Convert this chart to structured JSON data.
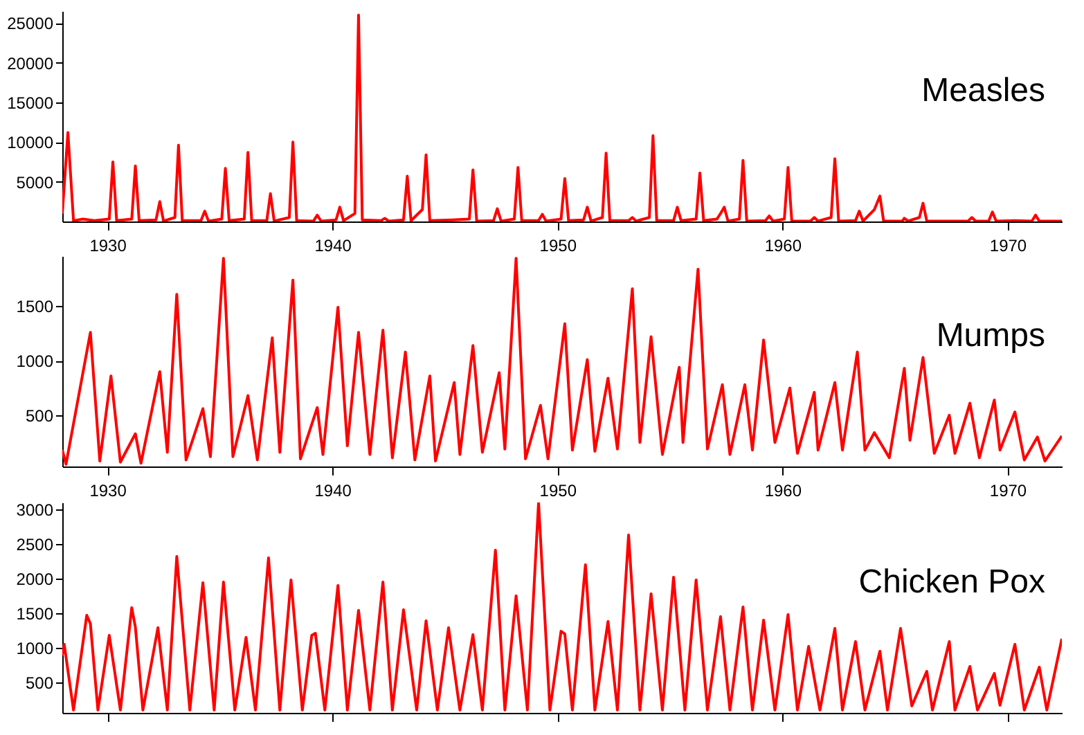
{
  "chart_data": [
    {
      "type": "line",
      "title": "Measles",
      "color": "#ff0000",
      "xlim": [
        "1928-01",
        "1972-06"
      ],
      "xticks": [
        "1930",
        "1940",
        "1950",
        "1960",
        "1970"
      ],
      "ylim": [
        0,
        26500
      ],
      "yticks": [
        5000,
        10000,
        15000,
        20000,
        25000
      ],
      "x": [
        "1928-01",
        "1928-04",
        "1928-07",
        "1928-12",
        "1929-06",
        "1930-02",
        "1930-04",
        "1930-06",
        "1931-02",
        "1931-04",
        "1931-06",
        "1932-03",
        "1932-05",
        "1932-07",
        "1933-01",
        "1933-03",
        "1933-05",
        "1934-03",
        "1934-05",
        "1934-07",
        "1935-02",
        "1935-04",
        "1935-06",
        "1936-02",
        "1936-04",
        "1936-06",
        "1937-02",
        "1937-04",
        "1937-06",
        "1938-02",
        "1938-04",
        "1938-06",
        "1939-03",
        "1939-05",
        "1939-07",
        "1940-03",
        "1940-05",
        "1940-07",
        "1941-01",
        "1941-03",
        "1941-05",
        "1942-03",
        "1942-05",
        "1942-07",
        "1943-03",
        "1943-05",
        "1943-07",
        "1944-01",
        "1944-03",
        "1944-05",
        "1945-05",
        "1946-02",
        "1946-04",
        "1946-06",
        "1947-03",
        "1947-05",
        "1947-07",
        "1948-02",
        "1948-04",
        "1948-06",
        "1949-03",
        "1949-05",
        "1949-07",
        "1950-03",
        "1950-05",
        "1950-07",
        "1951-03",
        "1951-05",
        "1951-07",
        "1952-01",
        "1952-03",
        "1952-05",
        "1953-03",
        "1953-05",
        "1953-07",
        "1954-02",
        "1954-04",
        "1954-06",
        "1955-03",
        "1955-05",
        "1955-07",
        "1956-03",
        "1956-05",
        "1956-07",
        "1957-02",
        "1957-04",
        "1957-06",
        "1957-08",
        "1958-02",
        "1958-04",
        "1958-06",
        "1959-04",
        "1959-06",
        "1959-08",
        "1960-02",
        "1960-04",
        "1960-06",
        "1961-04",
        "1961-06",
        "1961-08",
        "1962-03",
        "1962-05",
        "1962-07",
        "1963-04",
        "1963-06",
        "1963-08",
        "1964-02",
        "1964-05",
        "1964-07",
        "1965-05",
        "1965-06",
        "1965-08",
        "1966-02",
        "1966-04",
        "1966-06",
        "1968-04",
        "1968-06",
        "1968-08",
        "1969-03",
        "1969-05",
        "1969-07",
        "1970-05",
        "1971-02",
        "1971-04",
        "1971-06",
        "1972-06"
      ],
      "values": [
        1000,
        11200,
        100,
        300,
        100,
        300,
        7500,
        100,
        300,
        7000,
        100,
        200,
        2500,
        50,
        500,
        9600,
        100,
        100,
        1300,
        50,
        300,
        6700,
        100,
        300,
        8700,
        100,
        100,
        3500,
        50,
        500,
        10000,
        100,
        50,
        800,
        50,
        200,
        1800,
        100,
        1000,
        26000,
        200,
        100,
        400,
        50,
        200,
        5700,
        100,
        1500,
        8400,
        100,
        200,
        300,
        6500,
        50,
        100,
        1600,
        50,
        300,
        6800,
        100,
        100,
        900,
        50,
        300,
        5400,
        100,
        200,
        1800,
        50,
        500,
        8600,
        100,
        100,
        500,
        50,
        500,
        10800,
        100,
        100,
        1800,
        100,
        300,
        6100,
        100,
        300,
        1000,
        1800,
        50,
        300,
        7700,
        50,
        100,
        700,
        50,
        300,
        6800,
        50,
        50,
        500,
        50,
        500,
        7900,
        50,
        100,
        1300,
        50,
        1500,
        3200,
        50,
        50,
        400,
        50,
        500,
        2300,
        50,
        50,
        500,
        50,
        50,
        1200,
        50,
        100,
        50,
        800,
        50,
        50
      ]
    },
    {
      "type": "line",
      "title": "Mumps",
      "color": "#ff0000",
      "xlim": [
        "1928-01",
        "1972-06"
      ],
      "xticks": [
        "1930",
        "1940",
        "1950",
        "1960",
        "1970"
      ],
      "ylim": [
        30,
        1960
      ],
      "yticks": [
        500,
        1000,
        1500
      ],
      "x": [
        "1928-01",
        "1928-03",
        "1929-04",
        "1929-09",
        "1930-03",
        "1930-08",
        "1931-04",
        "1931-07",
        "1932-05",
        "1932-09",
        "1933-02",
        "1933-07",
        "1934-04",
        "1934-08",
        "1935-03",
        "1935-08",
        "1936-04",
        "1936-09",
        "1937-05",
        "1937-09",
        "1938-04",
        "1938-08",
        "1939-05",
        "1939-08",
        "1940-04",
        "1940-09",
        "1941-03",
        "1941-09",
        "1942-04",
        "1942-09",
        "1943-04",
        "1943-09",
        "1944-05",
        "1944-08",
        "1945-06",
        "1945-09",
        "1946-04",
        "1946-09",
        "1947-06",
        "1947-09",
        "1948-03",
        "1948-08",
        "1949-04",
        "1949-08",
        "1950-05",
        "1950-09",
        "1951-05",
        "1951-09",
        "1952-04",
        "1952-09",
        "1953-05",
        "1953-09",
        "1954-03",
        "1954-09",
        "1955-06",
        "1955-08",
        "1956-04",
        "1956-09",
        "1957-05",
        "1957-09",
        "1958-05",
        "1958-09",
        "1959-03",
        "1959-09",
        "1960-05",
        "1960-09",
        "1961-06",
        "1961-08",
        "1962-05",
        "1962-09",
        "1963-05",
        "1963-09",
        "1964-02",
        "1964-10",
        "1965-06",
        "1965-09",
        "1966-04",
        "1966-10",
        "1967-06",
        "1967-09",
        "1968-05",
        "1968-10",
        "1969-06",
        "1969-09",
        "1970-05",
        "1970-10",
        "1971-05",
        "1971-09",
        "1972-06"
      ],
      "values": [
        180,
        50,
        1260,
        80,
        860,
        70,
        330,
        60,
        900,
        160,
        1610,
        90,
        560,
        120,
        1940,
        120,
        680,
        90,
        1210,
        160,
        1740,
        100,
        570,
        140,
        1490,
        220,
        1260,
        140,
        1280,
        110,
        1080,
        90,
        860,
        80,
        800,
        140,
        1140,
        160,
        890,
        190,
        1940,
        100,
        590,
        100,
        1340,
        180,
        1010,
        170,
        840,
        190,
        1660,
        250,
        1220,
        140,
        940,
        250,
        1840,
        190,
        780,
        140,
        780,
        180,
        1190,
        250,
        750,
        150,
        710,
        180,
        800,
        180,
        1080,
        180,
        340,
        110,
        930,
        270,
        1030,
        150,
        500,
        150,
        610,
        110,
        640,
        180,
        530,
        90,
        300,
        80,
        310
      ]
    },
    {
      "type": "line",
      "title": "Chicken Pox",
      "color": "#ff0000",
      "xlim": [
        "1928-01",
        "1972-06"
      ],
      "xticks": [
        "1930",
        "1940",
        "1950",
        "1960",
        "1970"
      ],
      "ylim": [
        60,
        3100
      ],
      "yticks": [
        500,
        1000,
        1500,
        2000,
        2500,
        3000
      ],
      "tick_labels": "y",
      "x": [
        "1928-01",
        "1928-02",
        "1928-07",
        "1929-02",
        "1929-04",
        "1929-08",
        "1930-02",
        "1930-08",
        "1931-02",
        "1931-04",
        "1931-08",
        "1932-04",
        "1932-09",
        "1933-02",
        "1933-09",
        "1934-04",
        "1934-10",
        "1935-03",
        "1935-09",
        "1936-03",
        "1936-08",
        "1937-03",
        "1937-09",
        "1938-03",
        "1938-09",
        "1939-02",
        "1939-04",
        "1939-09",
        "1940-04",
        "1940-09",
        "1941-03",
        "1941-09",
        "1942-04",
        "1942-09",
        "1943-03",
        "1943-10",
        "1944-03",
        "1944-09",
        "1945-03",
        "1945-09",
        "1946-04",
        "1946-09",
        "1947-04",
        "1947-09",
        "1948-03",
        "1948-09",
        "1949-03",
        "1949-09",
        "1950-03",
        "1950-05",
        "1950-09",
        "1951-04",
        "1951-09",
        "1952-04",
        "1952-09",
        "1953-03",
        "1953-09",
        "1954-03",
        "1954-09",
        "1955-03",
        "1955-09",
        "1956-03",
        "1956-09",
        "1957-04",
        "1957-09",
        "1958-04",
        "1958-09",
        "1959-03",
        "1959-09",
        "1960-04",
        "1960-09",
        "1961-03",
        "1961-09",
        "1962-05",
        "1962-09",
        "1963-04",
        "1963-09",
        "1964-05",
        "1964-09",
        "1965-04",
        "1965-10",
        "1966-06",
        "1966-09",
        "1967-06",
        "1967-09",
        "1968-05",
        "1968-09",
        "1969-06",
        "1969-09",
        "1970-05",
        "1970-10",
        "1971-06",
        "1971-10",
        "1972-06"
      ],
      "values": [
        890,
        1050,
        100,
        1470,
        1350,
        100,
        1180,
        100,
        1580,
        1300,
        100,
        1290,
        100,
        2320,
        100,
        1940,
        100,
        1950,
        100,
        1150,
        100,
        2300,
        100,
        1980,
        100,
        1180,
        1210,
        100,
        1900,
        100,
        1540,
        100,
        1950,
        100,
        1550,
        100,
        1390,
        100,
        1290,
        100,
        1190,
        100,
        2410,
        100,
        1750,
        100,
        3100,
        100,
        1240,
        1200,
        100,
        2200,
        100,
        1380,
        100,
        2630,
        100,
        1780,
        100,
        2020,
        100,
        1980,
        100,
        1450,
        100,
        1590,
        100,
        1400,
        100,
        1480,
        100,
        1020,
        100,
        1280,
        100,
        1090,
        100,
        950,
        100,
        1280,
        160,
        660,
        100,
        1090,
        100,
        730,
        100,
        630,
        170,
        1050,
        100,
        720,
        100,
        1130
      ]
    }
  ]
}
